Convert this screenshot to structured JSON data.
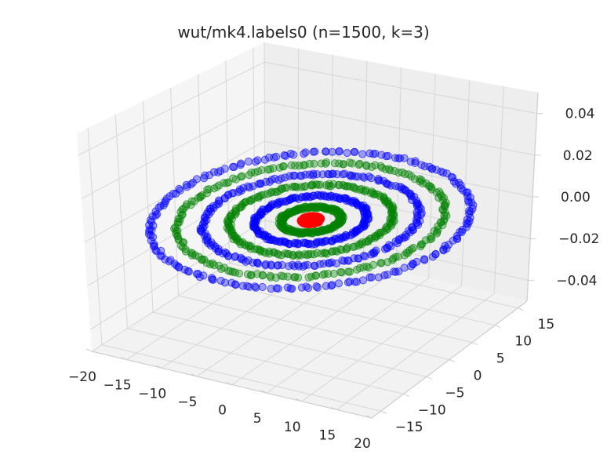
{
  "chart_data": {
    "type": "scatter3d",
    "title": "wut/mk4.labels0 (n=1500, k=3)",
    "xlabel": "",
    "ylabel": "",
    "zlabel": "",
    "x_ticks": [
      "−20",
      "−15",
      "−10",
      "−5",
      "0",
      "5",
      "10",
      "15",
      "20"
    ],
    "y_ticks": [
      "−15",
      "−10",
      "−5",
      "0",
      "5",
      "10",
      "15"
    ],
    "z_ticks": [
      "−0.04",
      "−0.02",
      "0.00",
      "0.02",
      "0.04"
    ],
    "xlim": [
      -20,
      20
    ],
    "ylim": [
      -17,
      17
    ],
    "zlim": [
      -0.05,
      0.05
    ],
    "grid": true,
    "series": [
      {
        "color": "#ff0000",
        "cluster": 1,
        "center": [
          0,
          0
        ],
        "radius": 1.2,
        "count": 300
      },
      {
        "color": "#0000ff",
        "cluster": 2,
        "rings": [
          6.5,
          12.5,
          18.5
        ],
        "count": 600
      },
      {
        "color": "#008000",
        "cluster": 3,
        "rings": [
          3.5,
          9.5,
          15.5
        ],
        "count": 600
      }
    ]
  },
  "colors": {
    "pane_back": "#eeeeee",
    "pane_side": "#f5f5f5",
    "pane_floor": "#f2f2f2",
    "grid": "#d6d6d6"
  }
}
